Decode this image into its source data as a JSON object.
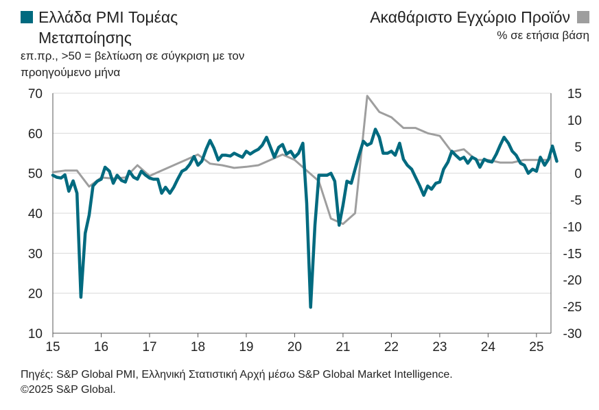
{
  "legend": {
    "left_title": "Ελλάδα PMI Τομέας Μεταποίησης",
    "left_subtitle": "επ.πρ., >50 = βελτίωση σε σύγκριση με τον προηγούμενο μήνα",
    "right_title": "Ακαθάριστο Εγχώριο Προϊόν",
    "right_subtitle": "% σε ετήσια βάση"
  },
  "footer": {
    "source": "Πηγές: S&P Global PMI, Ελληνική Στατιστική Αρχή μέσω S&P Global Market Intelligence.",
    "copyright": "©2025 S&P Global."
  },
  "chart_data": {
    "type": "line",
    "xlim": [
      2015.0,
      2025.3
    ],
    "x_ticks": [
      2015,
      2016,
      2017,
      2018,
      2019,
      2020,
      2021,
      2022,
      2023,
      2024,
      2025
    ],
    "x_tick_labels": [
      "15",
      "16",
      "17",
      "18",
      "19",
      "20",
      "21",
      "22",
      "23",
      "24",
      "25"
    ],
    "y_left": {
      "lim": [
        10,
        70
      ],
      "ticks": [
        10,
        20,
        30,
        40,
        50,
        60,
        70
      ]
    },
    "y_right": {
      "lim": [
        -30,
        15
      ],
      "ticks": [
        -30,
        -25,
        -20,
        -15,
        -10,
        -5,
        0,
        5,
        10,
        15
      ]
    },
    "grid": "horizontal",
    "series": [
      {
        "name": "Ελλάδα PMI Τομέας Μεταποίησης",
        "axis": "left",
        "color": "#006a7f",
        "points": [
          [
            2015.0,
            49.5
          ],
          [
            2015.08,
            49.0
          ],
          [
            2015.17,
            48.8
          ],
          [
            2015.25,
            49.6
          ],
          [
            2015.33,
            45.5
          ],
          [
            2015.42,
            48.1
          ],
          [
            2015.5,
            45.0
          ],
          [
            2015.58,
            19.0
          ],
          [
            2015.67,
            35.0
          ],
          [
            2015.75,
            39.5
          ],
          [
            2015.83,
            46.8
          ],
          [
            2015.92,
            48.0
          ],
          [
            2016.0,
            48.5
          ],
          [
            2016.08,
            51.5
          ],
          [
            2016.17,
            50.5
          ],
          [
            2016.25,
            47.5
          ],
          [
            2016.33,
            49.5
          ],
          [
            2016.42,
            48.2
          ],
          [
            2016.5,
            47.8
          ],
          [
            2016.58,
            50.5
          ],
          [
            2016.67,
            49.0
          ],
          [
            2016.75,
            48.5
          ],
          [
            2016.83,
            50.5
          ],
          [
            2016.92,
            49.5
          ],
          [
            2017.0,
            48.8
          ],
          [
            2017.08,
            48.5
          ],
          [
            2017.17,
            48.5
          ],
          [
            2017.25,
            45.0
          ],
          [
            2017.33,
            46.5
          ],
          [
            2017.42,
            45.0
          ],
          [
            2017.5,
            46.5
          ],
          [
            2017.58,
            48.5
          ],
          [
            2017.67,
            50.5
          ],
          [
            2017.75,
            51.0
          ],
          [
            2017.83,
            52.2
          ],
          [
            2017.92,
            54.2
          ],
          [
            2018.0,
            52.0
          ],
          [
            2018.08,
            53.0
          ],
          [
            2018.17,
            56.0
          ],
          [
            2018.25,
            58.2
          ],
          [
            2018.33,
            56.3
          ],
          [
            2018.42,
            53.3
          ],
          [
            2018.5,
            54.5
          ],
          [
            2018.58,
            54.5
          ],
          [
            2018.67,
            54.3
          ],
          [
            2018.75,
            55.0
          ],
          [
            2018.83,
            54.5
          ],
          [
            2018.92,
            54.0
          ],
          [
            2019.0,
            55.5
          ],
          [
            2019.08,
            54.8
          ],
          [
            2019.17,
            55.5
          ],
          [
            2019.25,
            56.0
          ],
          [
            2019.33,
            57.0
          ],
          [
            2019.42,
            59.0
          ],
          [
            2019.5,
            56.5
          ],
          [
            2019.58,
            54.0
          ],
          [
            2019.67,
            56.5
          ],
          [
            2019.75,
            57.2
          ],
          [
            2019.83,
            54.8
          ],
          [
            2019.92,
            55.5
          ],
          [
            2020.0,
            54.0
          ],
          [
            2020.08,
            55.0
          ],
          [
            2020.17,
            57.5
          ],
          [
            2020.25,
            42.5
          ],
          [
            2020.33,
            16.5
          ],
          [
            2020.42,
            37.0
          ],
          [
            2020.5,
            49.5
          ],
          [
            2020.58,
            49.5
          ],
          [
            2020.67,
            49.5
          ],
          [
            2020.75,
            50.0
          ],
          [
            2020.83,
            48.0
          ],
          [
            2020.92,
            37.0
          ],
          [
            2021.0,
            42.0
          ],
          [
            2021.08,
            48.0
          ],
          [
            2021.17,
            47.5
          ],
          [
            2021.25,
            51.0
          ],
          [
            2021.33,
            54.5
          ],
          [
            2021.42,
            58.0
          ],
          [
            2021.5,
            57.0
          ],
          [
            2021.58,
            57.5
          ],
          [
            2021.67,
            61.0
          ],
          [
            2021.75,
            59.0
          ],
          [
            2021.83,
            55.0
          ],
          [
            2021.92,
            55.0
          ],
          [
            2022.0,
            55.5
          ],
          [
            2022.08,
            54.5
          ],
          [
            2022.17,
            57.5
          ],
          [
            2022.25,
            53.5
          ],
          [
            2022.33,
            52.0
          ],
          [
            2022.42,
            51.0
          ],
          [
            2022.5,
            49.0
          ],
          [
            2022.58,
            47.0
          ],
          [
            2022.67,
            44.5
          ],
          [
            2022.75,
            46.8
          ],
          [
            2022.83,
            46.0
          ],
          [
            2022.92,
            47.5
          ],
          [
            2023.0,
            47.8
          ],
          [
            2023.08,
            51.0
          ],
          [
            2023.17,
            52.8
          ],
          [
            2023.25,
            55.5
          ],
          [
            2023.33,
            54.5
          ],
          [
            2023.42,
            53.5
          ],
          [
            2023.5,
            54.0
          ],
          [
            2023.58,
            52.5
          ],
          [
            2023.67,
            54.0
          ],
          [
            2023.75,
            53.5
          ],
          [
            2023.83,
            51.5
          ],
          [
            2023.92,
            53.5
          ],
          [
            2024.0,
            53.0
          ],
          [
            2024.08,
            52.8
          ],
          [
            2024.17,
            54.8
          ],
          [
            2024.25,
            57.0
          ],
          [
            2024.33,
            59.0
          ],
          [
            2024.42,
            57.5
          ],
          [
            2024.5,
            55.5
          ],
          [
            2024.58,
            54.5
          ],
          [
            2024.67,
            52.5
          ],
          [
            2024.75,
            52.0
          ],
          [
            2024.83,
            50.0
          ],
          [
            2024.92,
            51.0
          ],
          [
            2025.0,
            50.5
          ],
          [
            2025.08,
            54.0
          ],
          [
            2025.17,
            52.0
          ],
          [
            2025.25,
            53.5
          ],
          [
            2025.33,
            56.8
          ],
          [
            2025.42,
            53.0
          ]
        ]
      },
      {
        "name": "Ακαθάριστο Εγχώριο Προϊόν",
        "axis": "right",
        "color": "#9e9e9e",
        "points": [
          [
            2015.0,
            0.2
          ],
          [
            2015.25,
            0.5
          ],
          [
            2015.5,
            0.5
          ],
          [
            2015.75,
            -2.5
          ],
          [
            2016.0,
            -0.8
          ],
          [
            2016.25,
            -1.0
          ],
          [
            2016.5,
            -0.8
          ],
          [
            2016.75,
            1.5
          ],
          [
            2017.0,
            -0.5
          ],
          [
            2017.25,
            0.5
          ],
          [
            2017.5,
            1.5
          ],
          [
            2017.75,
            2.5
          ],
          [
            2018.0,
            3.5
          ],
          [
            2018.25,
            1.8
          ],
          [
            2018.5,
            1.5
          ],
          [
            2018.75,
            1.0
          ],
          [
            2019.0,
            1.2
          ],
          [
            2019.25,
            1.5
          ],
          [
            2019.5,
            2.5
          ],
          [
            2019.75,
            3.5
          ],
          [
            2020.0,
            2.5
          ],
          [
            2020.25,
            0.5
          ],
          [
            2020.5,
            -1.5
          ],
          [
            2020.75,
            -8.5
          ],
          [
            2021.0,
            -9.5
          ],
          [
            2021.25,
            -7.5
          ],
          [
            2021.5,
            14.5
          ],
          [
            2021.75,
            11.5
          ],
          [
            2022.0,
            10.5
          ],
          [
            2022.25,
            8.5
          ],
          [
            2022.5,
            8.5
          ],
          [
            2022.75,
            7.5
          ],
          [
            2023.0,
            7.0
          ],
          [
            2023.25,
            4.0
          ],
          [
            2023.5,
            4.5
          ],
          [
            2023.75,
            2.5
          ],
          [
            2024.0,
            2.5
          ],
          [
            2024.25,
            2.0
          ],
          [
            2024.5,
            2.0
          ],
          [
            2024.75,
            2.5
          ],
          [
            2025.0,
            2.5
          ],
          [
            2025.25,
            2.5
          ]
        ]
      }
    ]
  }
}
